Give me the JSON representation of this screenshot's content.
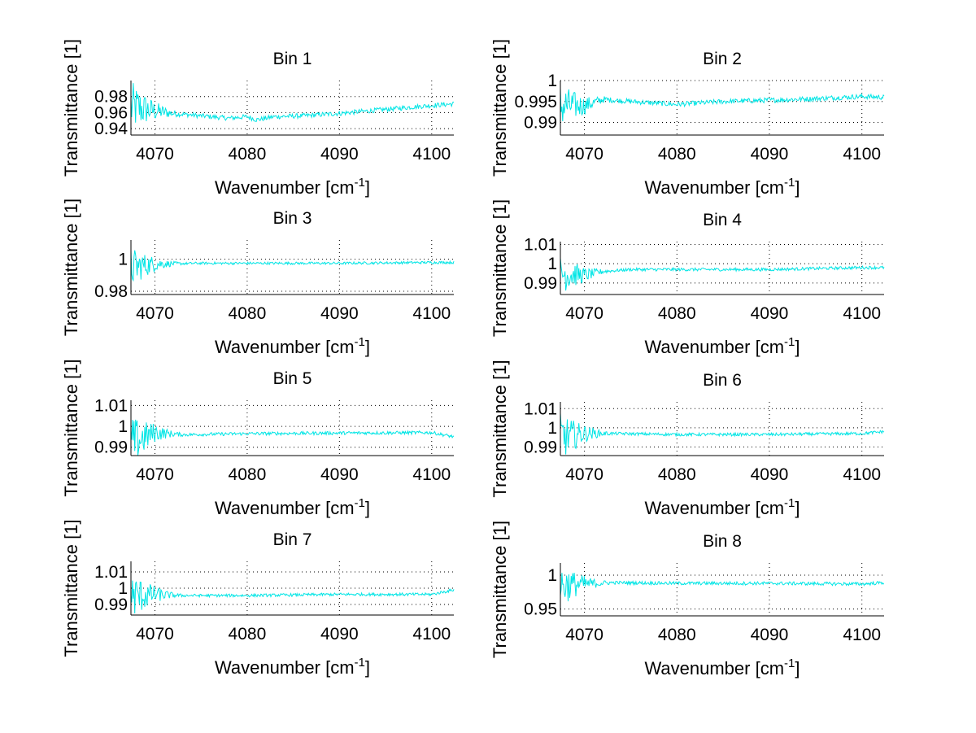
{
  "chart_data": [
    {
      "type": "line",
      "title": "Bin 1",
      "xlabel": "Wavenumber [cm^-1]",
      "ylabel": "Transmittance [1]",
      "xlim": [
        4067.4,
        4102.4
      ],
      "ylim": [
        0.932,
        1.0
      ],
      "xticks": [
        4070,
        4080,
        4090,
        4100
      ],
      "yticks": [
        0.94,
        0.96,
        0.98
      ],
      "ytick_labels": [
        "0.94",
        "0.96",
        "0.98"
      ],
      "grid": true,
      "series": [
        {
          "name": "Bin 1",
          "color": "#00e5e5",
          "profile": [
            [
              4067.4,
              0.967
            ],
            [
              4070,
              0.962
            ],
            [
              4072,
              0.959
            ],
            [
              4075,
              0.956
            ],
            [
              4078,
              0.953
            ],
            [
              4080,
              0.955
            ],
            [
              4081,
              0.951
            ],
            [
              4083,
              0.955
            ],
            [
              4086,
              0.956
            ],
            [
              4090,
              0.959
            ],
            [
              4093,
              0.962
            ],
            [
              4096,
              0.965
            ],
            [
              4099,
              0.968
            ],
            [
              4102.4,
              0.971
            ]
          ],
          "noise_early": 0.03,
          "noise": 0.003
        }
      ]
    },
    {
      "type": "line",
      "title": "Bin 2",
      "xlabel": "Wavenumber [cm^-1]",
      "ylabel": "Transmittance [1]",
      "xlim": [
        4067.4,
        4102.4
      ],
      "ylim": [
        0.987,
        1.0
      ],
      "xticks": [
        4070,
        4080,
        4090,
        4100
      ],
      "yticks": [
        0.99,
        0.995,
        1.0
      ],
      "ytick_labels": [
        "0.99",
        "0.995",
        "1"
      ],
      "grid": true,
      "series": [
        {
          "name": "Bin 2",
          "color": "#00e5e5",
          "profile": [
            [
              4067.4,
              0.994
            ],
            [
              4070,
              0.994
            ],
            [
              4072,
              0.9955
            ],
            [
              4075,
              0.995
            ],
            [
              4080,
              0.9943
            ],
            [
              4085,
              0.995
            ],
            [
              4090,
              0.9953
            ],
            [
              4095,
              0.9957
            ],
            [
              4100,
              0.9962
            ],
            [
              4102.4,
              0.996
            ]
          ],
          "noise_early": 0.005,
          "noise": 0.0006
        }
      ]
    },
    {
      "type": "line",
      "title": "Bin 3",
      "xlabel": "Wavenumber [cm^-1]",
      "ylabel": "Transmittance [1]",
      "xlim": [
        4067.4,
        4102.4
      ],
      "ylim": [
        0.978,
        1.012
      ],
      "xticks": [
        4070,
        4080,
        4090,
        4100
      ],
      "yticks": [
        0.98,
        1.0
      ],
      "ytick_labels": [
        "0.98",
        "1"
      ],
      "grid": true,
      "series": [
        {
          "name": "Bin 3",
          "color": "#00e5e5",
          "profile": [
            [
              4067.4,
              0.995
            ],
            [
              4070,
              0.997
            ],
            [
              4075,
              0.9975
            ],
            [
              4080,
              0.9975
            ],
            [
              4090,
              0.9975
            ],
            [
              4100,
              0.998
            ],
            [
              4102.4,
              0.998
            ]
          ],
          "noise_early": 0.012,
          "noise": 0.0008
        }
      ]
    },
    {
      "type": "line",
      "title": "Bin 4",
      "xlabel": "Wavenumber [cm^-1]",
      "ylabel": "Transmittance [1]",
      "xlim": [
        4067.4,
        4102.4
      ],
      "ylim": [
        0.984,
        1.0115
      ],
      "xticks": [
        4070,
        4080,
        4090,
        4100
      ],
      "yticks": [
        0.99,
        1.0,
        1.01
      ],
      "ytick_labels": [
        "0.99",
        "1",
        "1.01"
      ],
      "grid": true,
      "series": [
        {
          "name": "Bin 4",
          "color": "#00e5e5",
          "profile": [
            [
              4067.4,
              0.995
            ],
            [
              4070,
              0.994
            ],
            [
              4072,
              0.996
            ],
            [
              4075,
              0.997
            ],
            [
              4080,
              0.997
            ],
            [
              4090,
              0.997
            ],
            [
              4100,
              0.998
            ],
            [
              4102.4,
              0.998
            ]
          ],
          "noise_early": 0.01,
          "noise": 0.0008
        }
      ]
    },
    {
      "type": "line",
      "title": "Bin 5",
      "xlabel": "Wavenumber [cm^-1]",
      "ylabel": "Transmittance [1]",
      "xlim": [
        4067.4,
        4102.4
      ],
      "ylim": [
        0.986,
        1.0125
      ],
      "xticks": [
        4070,
        4080,
        4090,
        4100
      ],
      "yticks": [
        0.99,
        1.0,
        1.01
      ],
      "ytick_labels": [
        "0.99",
        "1",
        "1.01"
      ],
      "grid": true,
      "series": [
        {
          "name": "Bin 5",
          "color": "#00e5e5",
          "profile": [
            [
              4067.4,
              0.992
            ],
            [
              4070,
              0.997
            ],
            [
              4073,
              0.996
            ],
            [
              4080,
              0.9965
            ],
            [
              4090,
              0.9968
            ],
            [
              4100,
              0.997
            ],
            [
              4102.4,
              0.995
            ]
          ],
          "noise_early": 0.012,
          "noise": 0.0008
        }
      ]
    },
    {
      "type": "line",
      "title": "Bin 6",
      "xlabel": "Wavenumber [cm^-1]",
      "ylabel": "Transmittance [1]",
      "xlim": [
        4067.4,
        4102.4
      ],
      "ylim": [
        0.9855,
        1.0135
      ],
      "xticks": [
        4070,
        4080,
        4090,
        4100
      ],
      "yticks": [
        0.99,
        1.0,
        1.01
      ],
      "ytick_labels": [
        "0.99",
        "1",
        "1.01"
      ],
      "grid": true,
      "series": [
        {
          "name": "Bin 6",
          "color": "#00e5e5",
          "profile": [
            [
              4067.4,
              0.995
            ],
            [
              4070,
              0.997
            ],
            [
              4073,
              0.997
            ],
            [
              4080,
              0.9965
            ],
            [
              4090,
              0.9965
            ],
            [
              4100,
              0.997
            ],
            [
              4102.4,
              0.998
            ]
          ],
          "noise_early": 0.012,
          "noise": 0.0008
        }
      ]
    },
    {
      "type": "line",
      "title": "Bin 7",
      "xlabel": "Wavenumber [cm^-1]",
      "ylabel": "Transmittance [1]",
      "xlim": [
        4067.4,
        4102.4
      ],
      "ylim": [
        0.9835,
        1.0165
      ],
      "xticks": [
        4070,
        4080,
        4090,
        4100
      ],
      "yticks": [
        0.99,
        1.0,
        1.01
      ],
      "ytick_labels": [
        "0.99",
        "1",
        "1.01"
      ],
      "grid": true,
      "series": [
        {
          "name": "Bin 7",
          "color": "#00e5e5",
          "profile": [
            [
              4067.4,
              0.995
            ],
            [
              4070,
              0.996
            ],
            [
              4073,
              0.9955
            ],
            [
              4080,
              0.9955
            ],
            [
              4090,
              0.9962
            ],
            [
              4100,
              0.9962
            ],
            [
              4102.4,
              0.999
            ]
          ],
          "noise_early": 0.014,
          "noise": 0.0009
        }
      ]
    },
    {
      "type": "line",
      "title": "Bin 8",
      "xlabel": "Wavenumber [cm^-1]",
      "ylabel": "Transmittance [1]",
      "xlim": [
        4067.4,
        4102.4
      ],
      "ylim": [
        0.94,
        1.018
      ],
      "xticks": [
        4070,
        4080,
        4090,
        4100
      ],
      "yticks": [
        0.95,
        1.0
      ],
      "ytick_labels": [
        "0.95",
        "1"
      ],
      "grid": true,
      "series": [
        {
          "name": "Bin 8",
          "color": "#00e5e5",
          "profile": [
            [
              4067.4,
              0.985
            ],
            [
              4070,
              0.987
            ],
            [
              4073,
              0.989
            ],
            [
              4080,
              0.988
            ],
            [
              4090,
              0.988
            ],
            [
              4100,
              0.987
            ],
            [
              4102.4,
              0.989
            ]
          ],
          "noise_early": 0.03,
          "noise": 0.0025
        }
      ]
    }
  ]
}
